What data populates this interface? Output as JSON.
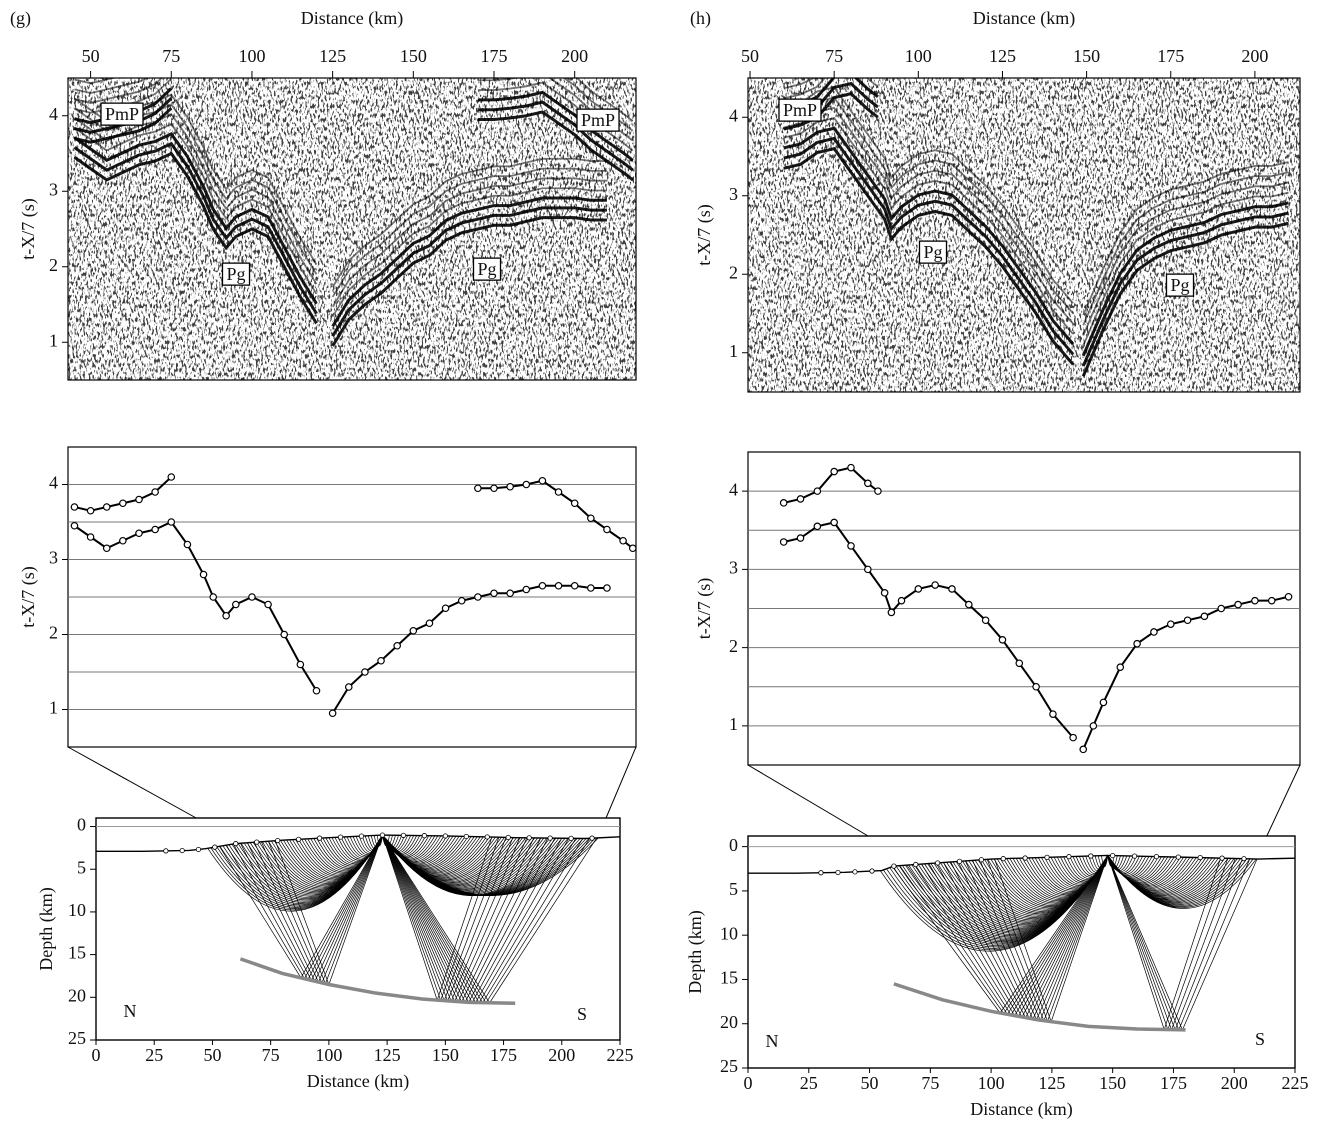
{
  "chart_data": [
    {
      "type": "seismic-section",
      "panel_label": "(g)",
      "xlabel": "Distance (km)",
      "ylabel": "t-X/7 (s)",
      "xlim": [
        43,
        219
      ],
      "xticks": [
        50,
        75,
        100,
        125,
        150,
        175,
        200
      ],
      "ylim": [
        0.5,
        4.5
      ],
      "yticks": [
        1,
        2,
        3,
        4
      ],
      "annotations": [
        "PmP",
        "PmP",
        "Pg",
        "Pg"
      ]
    },
    {
      "type": "picks",
      "ylabel": "t-X/7 (s)",
      "xlim": [
        43,
        219
      ],
      "ylim": [
        0.5,
        4.5
      ],
      "yticks": [
        1,
        2,
        3,
        4
      ],
      "ygrid": [
        1,
        1.5,
        2,
        2.5,
        3,
        3.5,
        4
      ],
      "grid": true,
      "series": [
        {
          "color": "#000000",
          "x": [
            45,
            50,
            55,
            60,
            65,
            70,
            75,
            80,
            85,
            88,
            92,
            95,
            100,
            105,
            110,
            115,
            120,
            122,
            125,
            130,
            135,
            140,
            145,
            150,
            155,
            160,
            165,
            170,
            175,
            180,
            185,
            190,
            195,
            200,
            205,
            210
          ],
          "values": [
            3.45,
            3.3,
            3.15,
            3.25,
            3.35,
            3.4,
            3.5,
            3.2,
            2.8,
            2.5,
            2.25,
            2.4,
            2.5,
            2.4,
            2.0,
            1.6,
            1.25,
            null,
            0.95,
            1.3,
            1.5,
            1.65,
            1.85,
            2.05,
            2.15,
            2.35,
            2.45,
            2.5,
            2.55,
            2.55,
            2.6,
            2.65,
            2.65,
            2.65,
            2.62,
            2.62
          ]
        },
        {
          "color": "#000000",
          "x": [
            45,
            50,
            55,
            60,
            65,
            70,
            75,
            120,
            170,
            175,
            180,
            185,
            190,
            195,
            200,
            205,
            210,
            215,
            218
          ],
          "values": [
            3.7,
            3.65,
            3.7,
            3.75,
            3.8,
            3.9,
            4.1,
            null,
            3.95,
            3.95,
            3.97,
            4.0,
            4.05,
            3.9,
            3.75,
            3.55,
            3.4,
            3.25,
            3.15
          ]
        }
      ]
    },
    {
      "type": "ray-diagram",
      "xlabel": "Distance (km)",
      "ylabel": "Depth (km)",
      "xlim": [
        0,
        225
      ],
      "xticks": [
        0,
        25,
        50,
        75,
        100,
        125,
        150,
        175,
        200,
        225
      ],
      "ylim": [
        -1,
        25
      ],
      "y_inverted": true,
      "yticks": [
        0,
        5,
        10,
        15,
        20,
        25
      ],
      "annotations": [
        "N",
        "S"
      ],
      "series": [
        {
          "color": "#000000",
          "x": [
            0,
            20,
            40,
            47,
            60,
            80,
            100,
            123,
            150,
            180,
            210,
            225
          ],
          "values": [
            2.9,
            2.9,
            2.8,
            2.6,
            2.0,
            1.6,
            1.3,
            1.0,
            1.1,
            1.3,
            1.4,
            1.2
          ]
        },
        {
          "color": "#888888",
          "x": [
            62,
            80,
            100,
            120,
            140,
            160,
            180
          ],
          "values": [
            15.5,
            17.2,
            18.5,
            19.5,
            20.2,
            20.6,
            20.7
          ]
        }
      ]
    },
    {
      "type": "seismic-section",
      "panel_label": "(h)",
      "xlabel": "Distance (km)",
      "ylabel": "t-X/7 (s)",
      "xlim": [
        49.4,
        213.4
      ],
      "xticks": [
        50,
        75,
        100,
        125,
        150,
        175,
        200
      ],
      "ylim": [
        0.5,
        4.5
      ],
      "yticks": [
        1,
        2,
        3,
        4
      ],
      "annotations": [
        "PmP",
        "Pg",
        "Pg"
      ]
    },
    {
      "type": "picks",
      "ylabel": "t-X/7 (s)",
      "xlim": [
        49.4,
        213.4
      ],
      "ylim": [
        0.5,
        4.5
      ],
      "yticks": [
        1,
        2,
        3,
        4
      ],
      "ygrid": [
        1,
        1.5,
        2,
        2.5,
        3,
        3.5,
        4
      ],
      "grid": true,
      "series": [
        {
          "color": "#000000",
          "x": [
            60,
            65,
            70,
            75,
            80,
            85,
            90,
            92,
            95,
            100,
            105,
            110,
            115,
            120,
            125,
            130,
            135,
            140,
            146,
            148,
            149,
            152,
            155,
            160,
            165,
            170,
            175,
            180,
            185,
            190,
            195,
            200,
            205,
            210
          ],
          "values": [
            3.35,
            3.4,
            3.55,
            3.6,
            3.3,
            3.0,
            2.7,
            2.45,
            2.6,
            2.75,
            2.8,
            2.75,
            2.55,
            2.35,
            2.1,
            1.8,
            1.5,
            1.15,
            0.85,
            null,
            0.7,
            1.0,
            1.3,
            1.75,
            2.05,
            2.2,
            2.3,
            2.35,
            2.4,
            2.5,
            2.55,
            2.6,
            2.6,
            2.65
          ]
        },
        {
          "color": "#000000",
          "x": [
            60,
            65,
            70,
            75,
            80,
            85,
            88
          ],
          "values": [
            3.85,
            3.9,
            4.0,
            4.25,
            4.3,
            4.1,
            4.0
          ]
        }
      ]
    },
    {
      "type": "ray-diagram",
      "xlabel": "Distance (km)",
      "ylabel": "Depth (km)",
      "xlim": [
        0,
        225
      ],
      "xticks": [
        0,
        25,
        50,
        75,
        100,
        125,
        150,
        175,
        200,
        225
      ],
      "ylim": [
        -1.2,
        25
      ],
      "y_inverted": true,
      "yticks": [
        0,
        5,
        10,
        15,
        20,
        25
      ],
      "annotations": [
        "N",
        "S"
      ],
      "series": [
        {
          "color": "#000000",
          "x": [
            0,
            20,
            40,
            55,
            60,
            80,
            100,
            148,
            180,
            210,
            225
          ],
          "values": [
            3.0,
            3.0,
            2.9,
            2.7,
            2.2,
            1.8,
            1.4,
            1.0,
            1.2,
            1.4,
            1.3
          ]
        },
        {
          "color": "#888888",
          "x": [
            60,
            80,
            100,
            120,
            140,
            160,
            180
          ],
          "values": [
            15.5,
            17.3,
            18.6,
            19.6,
            20.3,
            20.6,
            20.7
          ]
        }
      ]
    }
  ]
}
